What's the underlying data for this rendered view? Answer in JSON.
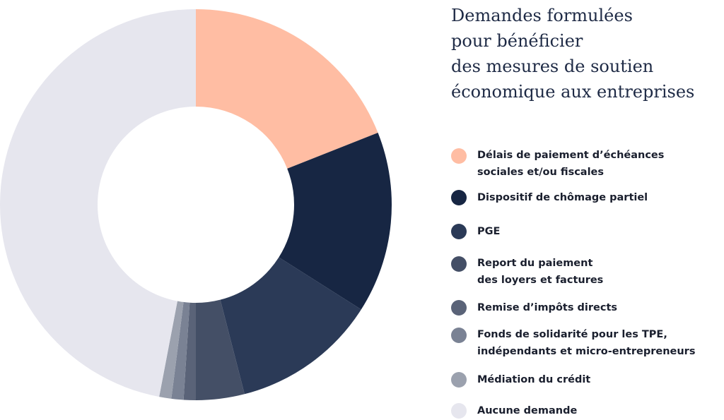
{
  "chart_data": {
    "type": "pie",
    "title": "Demandes formulées\npour bénéficier\ndes mesures de soutien\néconomique aux entreprises",
    "unit": "%",
    "categories": [
      "Délais de paiement d’échéances\nsociales et/ou fiscales",
      "Dispositif de chômage partiel",
      "PGE",
      "Report du paiement\ndes loyers et factures",
      "Remise d’impôts directs",
      "Fonds de solidarité pour les TPE,\nindépendants et micro-entrepreneurs",
      "Médiation du crédit",
      "Aucune demande"
    ],
    "values": [
      19,
      15,
      12,
      4,
      1,
      1,
      1,
      47
    ],
    "colors": [
      "#ffbda3",
      "#172643",
      "#2b3a57",
      "#444f66",
      "#5a6378",
      "#7a8294",
      "#9ba1ae",
      "#e6e6ee"
    ],
    "legend_position": "right",
    "donut": true
  }
}
